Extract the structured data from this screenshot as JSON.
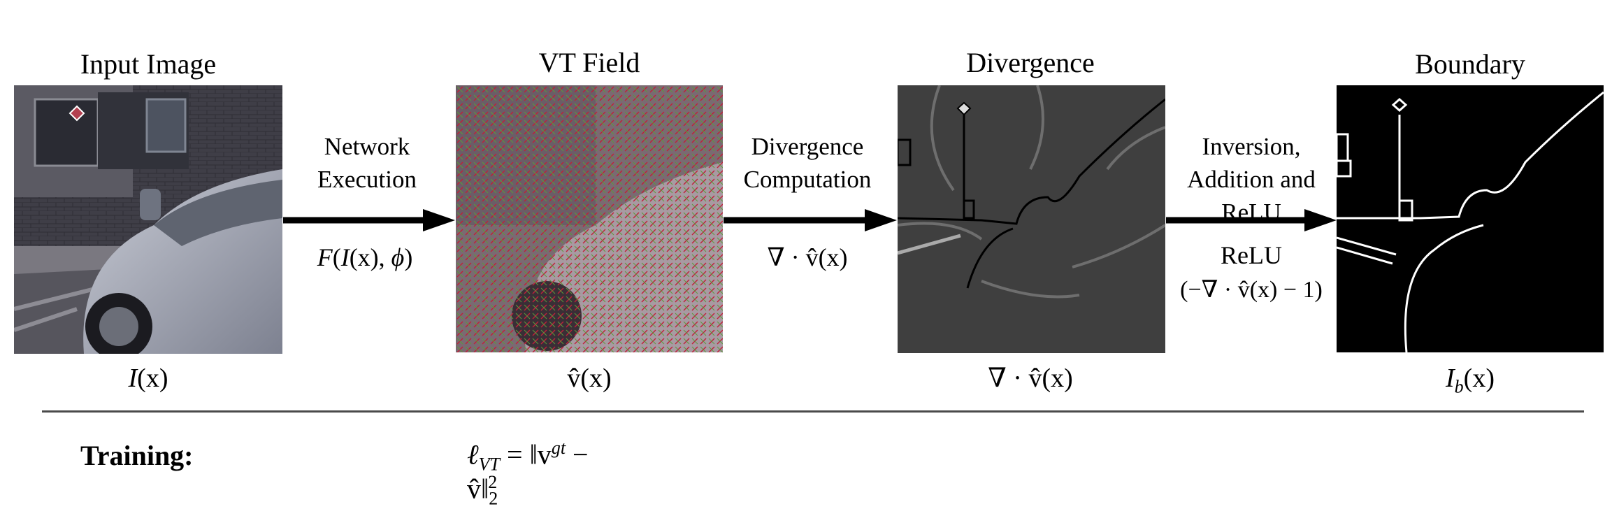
{
  "panels": {
    "input": {
      "title": "Input Image",
      "formula": "I(x)"
    },
    "vt": {
      "title": "VT Field",
      "formula": "v̂(x)"
    },
    "divergence": {
      "title": "Divergence",
      "formula": "∇ · v̂(x)"
    },
    "boundary": {
      "title": "Boundary",
      "formula": "I_b(x)"
    }
  },
  "operations": {
    "network": {
      "line1": "Network",
      "line2": "Execution",
      "formula": "F(I(x), ϕ)"
    },
    "divcomp": {
      "line1": "Divergence",
      "line2": "Computation",
      "formula": "∇ · v̂(x)"
    },
    "inversion": {
      "line1": "Inversion,",
      "line2": "Addition and",
      "line3": "ReLU",
      "formula1": "ReLU",
      "formula2": "(−∇ · v̂(x) − 1)"
    }
  },
  "training": {
    "label": "Training:",
    "loss": "ℓ_VT = ‖v^gt − v̂‖₂²"
  },
  "colors": {
    "arrow": "#000000",
    "separator": "#4a4a4a",
    "boundary_bg": "#000000",
    "boundary_line": "#ffffff"
  }
}
